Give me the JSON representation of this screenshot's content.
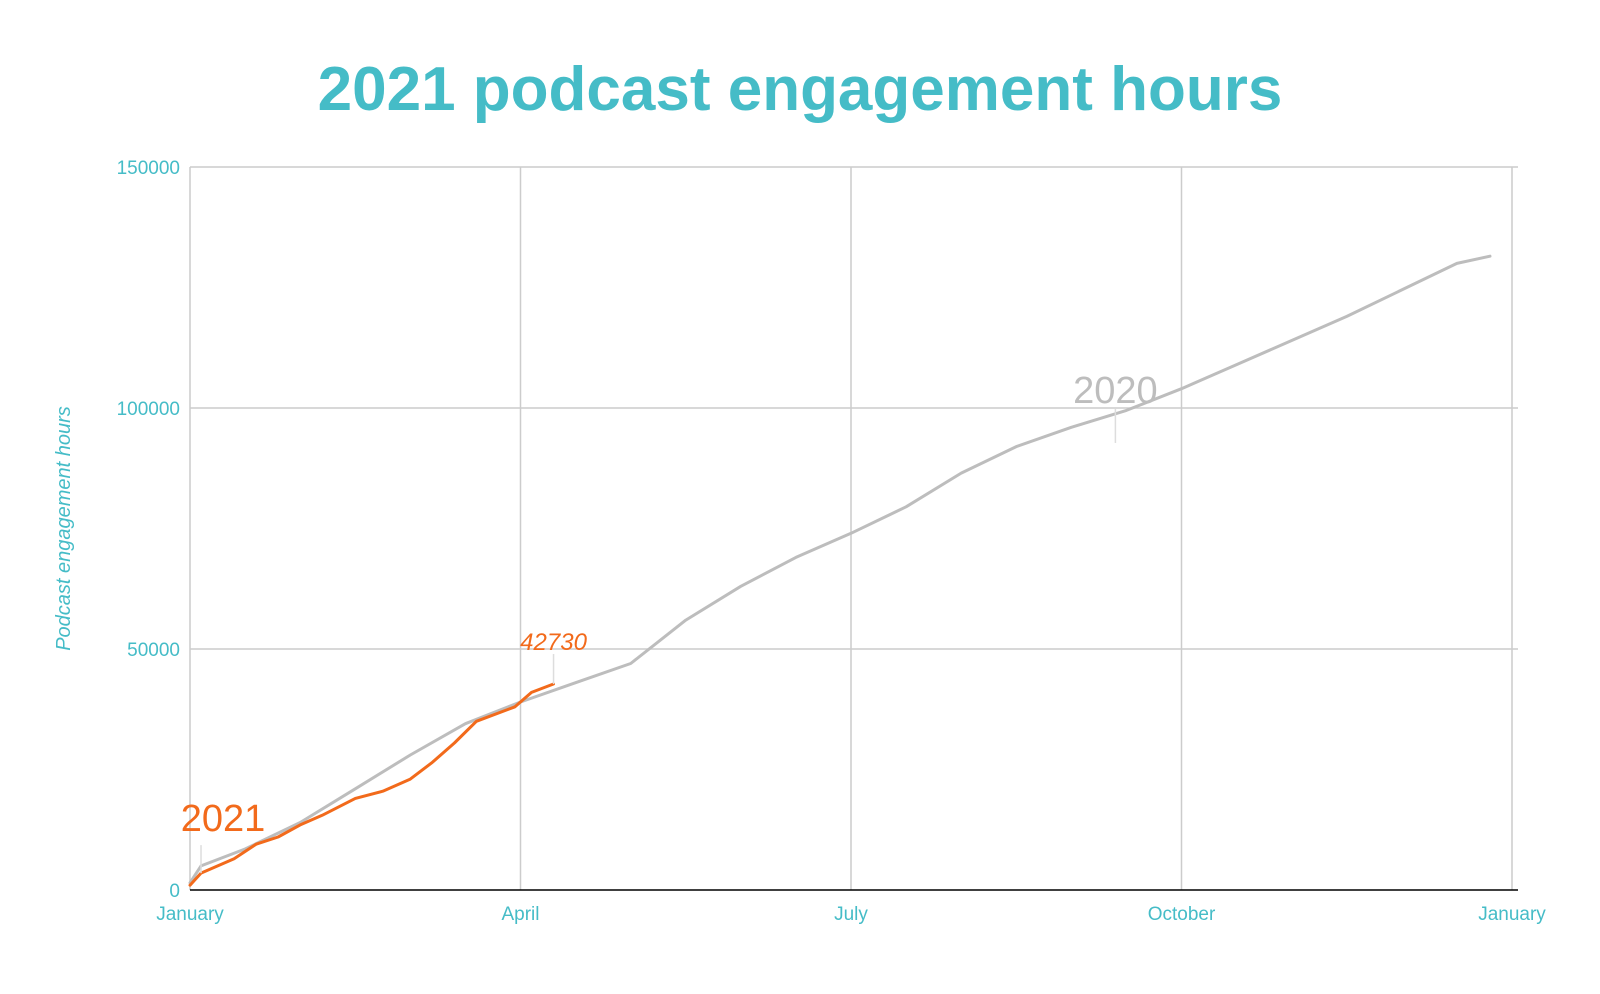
{
  "chart_data": {
    "type": "line",
    "title": "2021 podcast engagement hours",
    "xlabel": "",
    "ylabel": "Podcast engagement hours",
    "ylim": [
      0,
      150000
    ],
    "xlim_month": [
      0,
      12
    ],
    "x_tick_labels": [
      "January",
      "April",
      "July",
      "October",
      "January"
    ],
    "y_tick_labels": [
      "0",
      "50000",
      "100000",
      "150000"
    ],
    "y_ticks": [
      0,
      50000,
      100000,
      150000
    ],
    "grid": true,
    "legend": "none",
    "series": [
      {
        "name": "2020",
        "color": "#bdbdbd",
        "x": [
          0,
          0.1,
          0.5,
          1.0,
          1.5,
          2.0,
          2.5,
          3.0,
          3.5,
          4.0,
          4.5,
          5.0,
          5.5,
          6.0,
          6.5,
          7.0,
          7.5,
          8.0,
          8.5,
          9.0,
          9.5,
          10.0,
          10.5,
          11.0,
          11.5,
          11.8
        ],
        "values": [
          1500,
          5000,
          8500,
          14000,
          21000,
          28000,
          34500,
          39000,
          43000,
          47000,
          56000,
          63000,
          69000,
          74000,
          79500,
          86500,
          92000,
          96000,
          99500,
          104000,
          109000,
          114000,
          119000,
          124500,
          130000,
          131500
        ]
      },
      {
        "name": "2021",
        "color": "#f26a1b",
        "x": [
          0,
          0.1,
          0.4,
          0.6,
          0.8,
          1.0,
          1.2,
          1.5,
          1.75,
          2.0,
          2.2,
          2.4,
          2.6,
          2.95,
          3.1,
          3.3
        ],
        "values": [
          1000,
          3500,
          6500,
          9500,
          11000,
          13500,
          15500,
          19000,
          20500,
          23000,
          26500,
          30500,
          35000,
          38000,
          41000,
          42730
        ]
      }
    ],
    "annotations": {
      "label_2020": "2020",
      "label_2021": "2021",
      "end_value_2021": "42730"
    }
  },
  "colors": {
    "title": "#45bcc7",
    "axis_text": "#45bcc7",
    "grid": "#cccccc",
    "axis_line": "#000000"
  }
}
